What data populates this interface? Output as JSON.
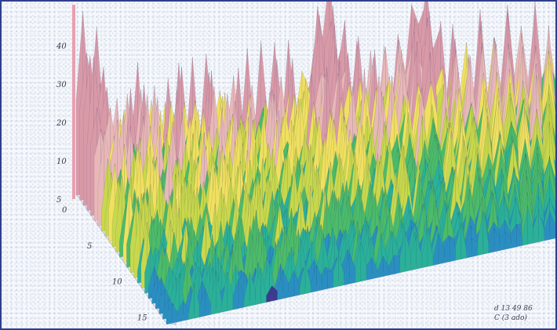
{
  "chart_data": {
    "type": "surface3d",
    "title": "",
    "xlabel": "",
    "ylabel": "",
    "zlabel": "",
    "z_ticks": [
      "5",
      "10",
      "20",
      "30",
      "40"
    ],
    "y_ticks": [
      "0",
      "5",
      "10",
      "15"
    ],
    "zlim": [
      0,
      45
    ],
    "ylim": [
      0,
      18
    ],
    "colormap": [
      "#3b3a8c",
      "#2a8fc0",
      "#2bb09a",
      "#4cbb6a",
      "#c8d84c",
      "#f0e060",
      "#e8b8b8",
      "#d99aa8"
    ],
    "peaks": [
      {
        "position": "back-left",
        "z": 45
      },
      {
        "position": "back-center",
        "z": 42
      },
      {
        "position": "back-right",
        "z": 44
      }
    ],
    "corner_note": [
      "d 13 49 86",
      "C (3 ado)"
    ]
  }
}
